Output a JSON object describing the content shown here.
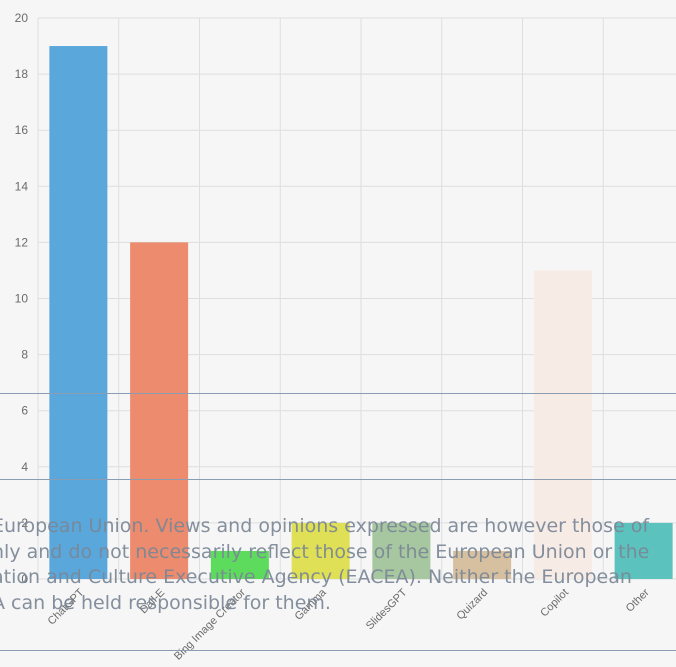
{
  "chart_data": {
    "type": "bar",
    "categories": [
      "ChatGPT",
      "Dall-E",
      "Bing Image Creator",
      "Gamma",
      "SlidesGPT",
      "Quizard",
      "Copilot",
      "Other"
    ],
    "values": [
      19,
      12,
      1,
      2,
      2,
      1,
      11,
      2
    ],
    "colors": [
      "#5aa7db",
      "#ec8b6e",
      "#5ddb5d",
      "#dfe055",
      "#a7c7a1",
      "#d7c0a0",
      "#f7ebe6",
      "#5bc2bd"
    ],
    "ylim": [
      0,
      20
    ],
    "yticks": [
      0,
      2,
      4,
      6,
      8,
      10,
      12,
      14,
      16,
      18,
      20
    ],
    "ytick_labels": [
      "0",
      "2",
      "4",
      "6",
      "8",
      "10",
      "12",
      "14",
      "16",
      "18",
      "20"
    ],
    "grid": true
  },
  "disclaimer_lines": [
    "European Union. Views and opinions expressed are however those of",
    "nly and do not necessarily reflect those of the European Union or the",
    "ation and Culture Executive Agency (EACEA). Neither the European",
    "A can be held responsible for them."
  ]
}
